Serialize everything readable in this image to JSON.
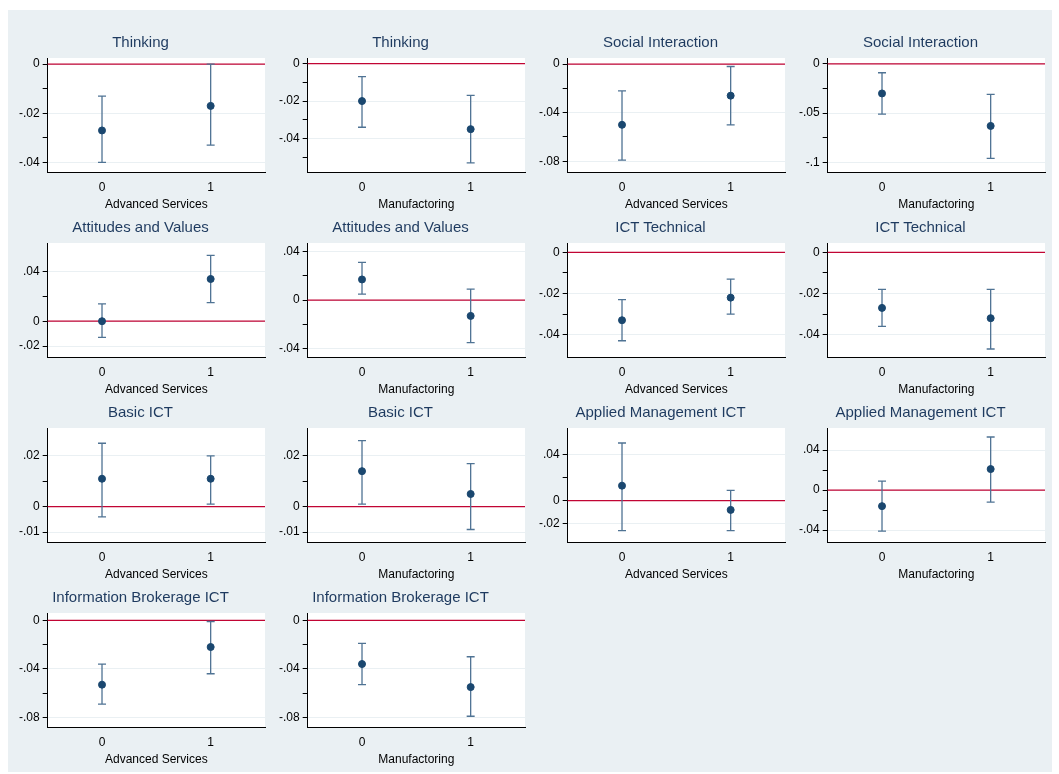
{
  "chart_data": [
    {
      "type": "scatter",
      "title": "Thinking",
      "xlabel": "Advanced Services",
      "categories": [
        "0",
        "1"
      ],
      "values": [
        -0.027,
        -0.017
      ],
      "errors": [
        [
          -0.04,
          -0.013
        ],
        [
          -0.033,
          0.0
        ]
      ],
      "color": "#1a476f",
      "marker": "circle",
      "ylim": [
        -0.044,
        0.0025
      ],
      "yticks": [
        {
          "value": -0.04,
          "label": "-.04"
        },
        {
          "value": -0.03,
          "label": null
        },
        {
          "value": -0.02,
          "label": "-.02"
        },
        {
          "value": -0.01,
          "label": null
        },
        {
          "value": 0,
          "label": "0"
        }
      ],
      "grid": "y",
      "ref_lines": [
        {
          "axis": "y",
          "value": 0,
          "color": "#c10534"
        }
      ]
    },
    {
      "type": "scatter",
      "title": "Thinking",
      "xlabel": "Manufactoring",
      "categories": [
        "0",
        "1"
      ],
      "values": [
        -0.02,
        -0.035
      ],
      "errors": [
        [
          -0.034,
          -0.007
        ],
        [
          -0.053,
          -0.017
        ]
      ],
      "color": "#1a476f",
      "marker": "circle",
      "ylim": [
        -0.058,
        0.003
      ],
      "yticks": [
        {
          "value": -0.05,
          "label": null
        },
        {
          "value": -0.04,
          "label": "-.04"
        },
        {
          "value": -0.03,
          "label": null
        },
        {
          "value": -0.02,
          "label": "-.02"
        },
        {
          "value": -0.01,
          "label": null
        },
        {
          "value": 0,
          "label": "0"
        }
      ],
      "grid": "y",
      "ref_lines": [
        {
          "axis": "y",
          "value": 0,
          "color": "#c10534"
        }
      ]
    },
    {
      "type": "scatter",
      "title": "Social Interaction",
      "xlabel": "Advanced Services",
      "categories": [
        "0",
        "1"
      ],
      "values": [
        -0.05,
        -0.026
      ],
      "errors": [
        [
          -0.079,
          -0.022
        ],
        [
          -0.05,
          -0.002
        ]
      ],
      "color": "#1a476f",
      "marker": "circle",
      "ylim": [
        -0.089,
        0.005
      ],
      "yticks": [
        {
          "value": -0.08,
          "label": "-.08"
        },
        {
          "value": -0.06,
          "label": null
        },
        {
          "value": -0.04,
          "label": "-.04"
        },
        {
          "value": -0.02,
          "label": null
        },
        {
          "value": 0,
          "label": "0"
        }
      ],
      "grid": "y",
      "ref_lines": [
        {
          "axis": "y",
          "value": 0,
          "color": "#c10534"
        }
      ]
    },
    {
      "type": "scatter",
      "title": "Social Interaction",
      "xlabel": "Manufactoring",
      "categories": [
        "0",
        "1"
      ],
      "values": [
        -0.03,
        -0.063
      ],
      "errors": [
        [
          -0.051,
          -0.009
        ],
        [
          -0.096,
          -0.031
        ]
      ],
      "color": "#1a476f",
      "marker": "circle",
      "ylim": [
        -0.11,
        0.006
      ],
      "yticks": [
        {
          "value": -0.1,
          "label": "-.1"
        },
        {
          "value": -0.075,
          "label": null
        },
        {
          "value": -0.05,
          "label": "-.05"
        },
        {
          "value": -0.025,
          "label": null
        },
        {
          "value": 0,
          "label": "0"
        }
      ],
      "grid": "y",
      "ref_lines": [
        {
          "axis": "y",
          "value": 0,
          "color": "#c10534"
        }
      ]
    },
    {
      "type": "scatter",
      "title": "Attitudes and Values",
      "xlabel": "Advanced Services",
      "categories": [
        "0",
        "1"
      ],
      "values": [
        0.0,
        0.034
      ],
      "errors": [
        [
          -0.013,
          0.014
        ],
        [
          0.015,
          0.053
        ]
      ],
      "color": "#1a476f",
      "marker": "circle",
      "ylim": [
        -0.029,
        0.063
      ],
      "yticks": [
        {
          "value": -0.02,
          "label": "-.02"
        },
        {
          "value": 0,
          "label": "0"
        },
        {
          "value": 0.02,
          "label": null
        },
        {
          "value": 0.04,
          "label": ".04"
        }
      ],
      "grid": "y",
      "ref_lines": [
        {
          "axis": "y",
          "value": 0,
          "color": "#c10534"
        }
      ]
    },
    {
      "type": "scatter",
      "title": "Attitudes and Values",
      "xlabel": "Manufactoring",
      "categories": [
        "0",
        "1"
      ],
      "values": [
        0.017,
        -0.013
      ],
      "errors": [
        [
          0.005,
          0.031
        ],
        [
          -0.035,
          0.009
        ]
      ],
      "color": "#1a476f",
      "marker": "circle",
      "ylim": [
        -0.047,
        0.047
      ],
      "yticks": [
        {
          "value": -0.04,
          "label": "-.04"
        },
        {
          "value": -0.02,
          "label": null
        },
        {
          "value": 0,
          "label": "0"
        },
        {
          "value": 0.02,
          "label": null
        },
        {
          "value": 0.04,
          "label": ".04"
        }
      ],
      "grid": "y",
      "ref_lines": [
        {
          "axis": "y",
          "value": 0,
          "color": "#c10534"
        }
      ]
    },
    {
      "type": "scatter",
      "title": "ICT Technical",
      "xlabel": "Advanced Services",
      "categories": [
        "0",
        "1"
      ],
      "values": [
        -0.033,
        -0.022
      ],
      "errors": [
        [
          -0.043,
          -0.023
        ],
        [
          -0.03,
          -0.013
        ]
      ],
      "color": "#1a476f",
      "marker": "circle",
      "ylim": [
        -0.051,
        0.0046
      ],
      "yticks": [
        {
          "value": -0.04,
          "label": "-.04"
        },
        {
          "value": -0.03,
          "label": null
        },
        {
          "value": -0.02,
          "label": "-.02"
        },
        {
          "value": -0.01,
          "label": null
        },
        {
          "value": 0,
          "label": "0"
        }
      ],
      "grid": "y",
      "ref_lines": [
        {
          "axis": "y",
          "value": 0,
          "color": "#c10534"
        }
      ]
    },
    {
      "type": "scatter",
      "title": "ICT Technical",
      "xlabel": "Manufactoring",
      "categories": [
        "0",
        "1"
      ],
      "values": [
        -0.027,
        -0.032
      ],
      "errors": [
        [
          -0.036,
          -0.018
        ],
        [
          -0.047,
          -0.018
        ]
      ],
      "color": "#1a476f",
      "marker": "circle",
      "ylim": [
        -0.051,
        0.0046
      ],
      "yticks": [
        {
          "value": -0.04,
          "label": "-.04"
        },
        {
          "value": -0.03,
          "label": null
        },
        {
          "value": -0.02,
          "label": "-.02"
        },
        {
          "value": -0.01,
          "label": null
        },
        {
          "value": 0,
          "label": "0"
        }
      ],
      "grid": "y",
      "ref_lines": [
        {
          "axis": "y",
          "value": 0,
          "color": "#c10534"
        }
      ]
    },
    {
      "type": "scatter",
      "title": "Basic ICT",
      "xlabel": "Advanced Services",
      "categories": [
        "0",
        "1"
      ],
      "values": [
        0.011,
        0.011
      ],
      "errors": [
        [
          -0.004,
          0.025
        ],
        [
          0.001,
          0.02
        ]
      ],
      "color": "#1a476f",
      "marker": "circle",
      "ylim": [
        -0.014,
        0.031
      ],
      "yticks": [
        {
          "value": -0.01,
          "label": "-.01"
        },
        {
          "value": 0,
          "label": "0"
        },
        {
          "value": 0.01,
          "label": null
        },
        {
          "value": 0.02,
          "label": ".02"
        }
      ],
      "grid": "y",
      "ref_lines": [
        {
          "axis": "y",
          "value": 0,
          "color": "#c10534"
        }
      ]
    },
    {
      "type": "scatter",
      "title": "Basic ICT",
      "xlabel": "Manufactoring",
      "categories": [
        "0",
        "1"
      ],
      "values": [
        0.014,
        0.005
      ],
      "errors": [
        [
          0.001,
          0.026
        ],
        [
          -0.009,
          0.017
        ]
      ],
      "color": "#1a476f",
      "marker": "circle",
      "ylim": [
        -0.014,
        0.031
      ],
      "yticks": [
        {
          "value": -0.01,
          "label": "-.01"
        },
        {
          "value": 0,
          "label": "0"
        },
        {
          "value": 0.01,
          "label": null
        },
        {
          "value": 0.02,
          "label": ".02"
        }
      ],
      "grid": "y",
      "ref_lines": [
        {
          "axis": "y",
          "value": 0,
          "color": "#c10534"
        }
      ]
    },
    {
      "type": "scatter",
      "title": "Applied Management ICT",
      "xlabel": "Advanced Services",
      "categories": [
        "0",
        "1"
      ],
      "values": [
        0.013,
        -0.008
      ],
      "errors": [
        [
          -0.026,
          0.05
        ],
        [
          -0.026,
          0.009
        ]
      ],
      "color": "#1a476f",
      "marker": "circle",
      "ylim": [
        -0.036,
        0.063
      ],
      "yticks": [
        {
          "value": -0.02,
          "label": "-.02"
        },
        {
          "value": 0,
          "label": "0"
        },
        {
          "value": 0.02,
          "label": null
        },
        {
          "value": 0.04,
          "label": ".04"
        }
      ],
      "grid": "y",
      "ref_lines": [
        {
          "axis": "y",
          "value": 0,
          "color": "#c10534"
        }
      ]
    },
    {
      "type": "scatter",
      "title": "Applied Management ICT",
      "xlabel": "Manufactoring",
      "categories": [
        "0",
        "1"
      ],
      "values": [
        -0.016,
        0.021
      ],
      "errors": [
        [
          -0.041,
          0.009
        ],
        [
          -0.012,
          0.053
        ]
      ],
      "color": "#1a476f",
      "marker": "circle",
      "ylim": [
        -0.052,
        0.062
      ],
      "yticks": [
        {
          "value": -0.04,
          "label": "-.04"
        },
        {
          "value": -0.02,
          "label": null
        },
        {
          "value": 0,
          "label": "0"
        },
        {
          "value": 0.02,
          "label": null
        },
        {
          "value": 0.04,
          "label": ".04"
        }
      ],
      "grid": "y",
      "ref_lines": [
        {
          "axis": "y",
          "value": 0,
          "color": "#c10534"
        }
      ]
    },
    {
      "type": "scatter",
      "title": "Information Brokerage ICT",
      "xlabel": "Advanced Services",
      "categories": [
        "0",
        "1"
      ],
      "values": [
        -0.053,
        -0.022
      ],
      "errors": [
        [
          -0.069,
          -0.036
        ],
        [
          -0.044,
          -0.001
        ]
      ],
      "color": "#1a476f",
      "marker": "circle",
      "ylim": [
        -0.088,
        0.006
      ],
      "yticks": [
        {
          "value": -0.08,
          "label": "-.08"
        },
        {
          "value": -0.06,
          "label": null
        },
        {
          "value": -0.04,
          "label": "-.04"
        },
        {
          "value": -0.02,
          "label": null
        },
        {
          "value": 0,
          "label": "0"
        }
      ],
      "grid": "y",
      "ref_lines": [
        {
          "axis": "y",
          "value": 0,
          "color": "#c10534"
        }
      ]
    },
    {
      "type": "scatter",
      "title": "Information Brokerage ICT",
      "xlabel": "Manufactoring",
      "categories": [
        "0",
        "1"
      ],
      "values": [
        -0.036,
        -0.055
      ],
      "errors": [
        [
          -0.053,
          -0.019
        ],
        [
          -0.079,
          -0.03
        ]
      ],
      "color": "#1a476f",
      "marker": "circle",
      "ylim": [
        -0.088,
        0.006
      ],
      "yticks": [
        {
          "value": -0.08,
          "label": "-.08"
        },
        {
          "value": -0.06,
          "label": null
        },
        {
          "value": -0.04,
          "label": "-.04"
        },
        {
          "value": -0.02,
          "label": null
        },
        {
          "value": 0,
          "label": "0"
        }
      ],
      "grid": "y",
      "ref_lines": [
        {
          "axis": "y",
          "value": 0,
          "color": "#c10534"
        }
      ]
    }
  ]
}
